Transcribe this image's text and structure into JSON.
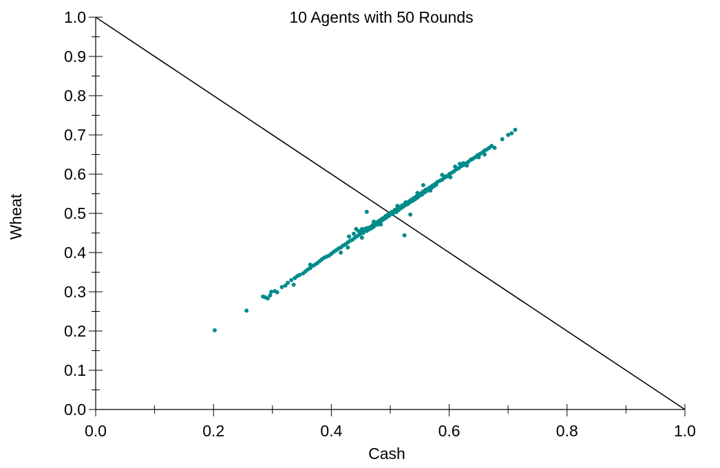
{
  "chart_data": {
    "type": "scatter",
    "title": "10 Agents with 50 Rounds",
    "xlabel": "Cash",
    "ylabel": "Wheat",
    "xlim": [
      0.0,
      1.0
    ],
    "ylim": [
      0.0,
      1.0
    ],
    "xticks": [
      "0.0",
      "0.2",
      "0.4",
      "0.6",
      "0.8",
      "1.0"
    ],
    "yticks": [
      "0.0",
      "0.1",
      "0.2",
      "0.3",
      "0.4",
      "0.5",
      "0.6",
      "0.7",
      "0.8",
      "0.9",
      "1.0"
    ],
    "grid": false,
    "point_color": "#008b8b",
    "line_color": "#000000",
    "reference_line": [
      [
        0.0,
        1.0
      ],
      [
        1.0,
        0.0
      ]
    ],
    "points": [
      [
        0.202,
        0.202
      ],
      [
        0.256,
        0.252
      ],
      [
        0.284,
        0.288
      ],
      [
        0.288,
        0.286
      ],
      [
        0.292,
        0.283
      ],
      [
        0.296,
        0.291
      ],
      [
        0.298,
        0.3
      ],
      [
        0.304,
        0.302
      ],
      [
        0.308,
        0.299
      ],
      [
        0.316,
        0.312
      ],
      [
        0.322,
        0.316
      ],
      [
        0.326,
        0.323
      ],
      [
        0.332,
        0.33
      ],
      [
        0.336,
        0.318
      ],
      [
        0.338,
        0.335
      ],
      [
        0.342,
        0.34
      ],
      [
        0.346,
        0.343
      ],
      [
        0.352,
        0.347
      ],
      [
        0.356,
        0.352
      ],
      [
        0.36,
        0.357
      ],
      [
        0.364,
        0.36
      ],
      [
        0.368,
        0.366
      ],
      [
        0.372,
        0.369
      ],
      [
        0.376,
        0.373
      ],
      [
        0.38,
        0.378
      ],
      [
        0.384,
        0.383
      ],
      [
        0.388,
        0.387
      ],
      [
        0.392,
        0.39
      ],
      [
        0.396,
        0.392
      ],
      [
        0.4,
        0.397
      ],
      [
        0.404,
        0.402
      ],
      [
        0.408,
        0.406
      ],
      [
        0.412,
        0.41
      ],
      [
        0.416,
        0.413
      ],
      [
        0.42,
        0.418
      ],
      [
        0.424,
        0.421
      ],
      [
        0.428,
        0.426
      ],
      [
        0.43,
        0.441
      ],
      [
        0.432,
        0.43
      ],
      [
        0.436,
        0.433
      ],
      [
        0.438,
        0.448
      ],
      [
        0.44,
        0.438
      ],
      [
        0.442,
        0.46
      ],
      [
        0.444,
        0.442
      ],
      [
        0.446,
        0.455
      ],
      [
        0.448,
        0.446
      ],
      [
        0.45,
        0.453
      ],
      [
        0.452,
        0.46
      ],
      [
        0.454,
        0.45
      ],
      [
        0.456,
        0.458
      ],
      [
        0.458,
        0.461
      ],
      [
        0.46,
        0.455
      ],
      [
        0.462,
        0.463
      ],
      [
        0.464,
        0.459
      ],
      [
        0.466,
        0.465
      ],
      [
        0.468,
        0.462
      ],
      [
        0.47,
        0.47
      ],
      [
        0.472,
        0.466
      ],
      [
        0.474,
        0.473
      ],
      [
        0.476,
        0.476
      ],
      [
        0.478,
        0.471
      ],
      [
        0.48,
        0.48
      ],
      [
        0.482,
        0.477
      ],
      [
        0.484,
        0.484
      ],
      [
        0.486,
        0.482
      ],
      [
        0.488,
        0.488
      ],
      [
        0.49,
        0.486
      ],
      [
        0.492,
        0.493
      ],
      [
        0.494,
        0.49
      ],
      [
        0.496,
        0.497
      ],
      [
        0.498,
        0.494
      ],
      [
        0.5,
        0.5
      ],
      [
        0.502,
        0.503
      ],
      [
        0.504,
        0.498
      ],
      [
        0.506,
        0.506
      ],
      [
        0.508,
        0.509
      ],
      [
        0.51,
        0.503
      ],
      [
        0.512,
        0.512
      ],
      [
        0.514,
        0.508
      ],
      [
        0.516,
        0.516
      ],
      [
        0.518,
        0.513
      ],
      [
        0.52,
        0.52
      ],
      [
        0.522,
        0.517
      ],
      [
        0.524,
        0.523
      ],
      [
        0.526,
        0.521
      ],
      [
        0.528,
        0.527
      ],
      [
        0.53,
        0.524
      ],
      [
        0.532,
        0.531
      ],
      [
        0.534,
        0.529
      ],
      [
        0.536,
        0.535
      ],
      [
        0.538,
        0.532
      ],
      [
        0.54,
        0.539
      ],
      [
        0.542,
        0.536
      ],
      [
        0.544,
        0.543
      ],
      [
        0.546,
        0.54
      ],
      [
        0.548,
        0.547
      ],
      [
        0.55,
        0.545
      ],
      [
        0.552,
        0.551
      ],
      [
        0.554,
        0.548
      ],
      [
        0.556,
        0.556
      ],
      [
        0.558,
        0.553
      ],
      [
        0.56,
        0.56
      ],
      [
        0.562,
        0.557
      ],
      [
        0.564,
        0.563
      ],
      [
        0.566,
        0.561
      ],
      [
        0.568,
        0.567
      ],
      [
        0.57,
        0.565
      ],
      [
        0.572,
        0.571
      ],
      [
        0.574,
        0.569
      ],
      [
        0.576,
        0.575
      ],
      [
        0.578,
        0.573
      ],
      [
        0.58,
        0.58
      ],
      [
        0.584,
        0.583
      ],
      [
        0.588,
        0.586
      ],
      [
        0.592,
        0.591
      ],
      [
        0.596,
        0.594
      ],
      [
        0.6,
        0.6
      ],
      [
        0.604,
        0.603
      ],
      [
        0.608,
        0.607
      ],
      [
        0.612,
        0.612
      ],
      [
        0.616,
        0.615
      ],
      [
        0.62,
        0.62
      ],
      [
        0.624,
        0.623
      ],
      [
        0.628,
        0.627
      ],
      [
        0.632,
        0.631
      ],
      [
        0.636,
        0.636
      ],
      [
        0.64,
        0.639
      ],
      [
        0.644,
        0.643
      ],
      [
        0.648,
        0.648
      ],
      [
        0.652,
        0.651
      ],
      [
        0.656,
        0.655
      ],
      [
        0.66,
        0.66
      ],
      [
        0.664,
        0.663
      ],
      [
        0.668,
        0.667
      ],
      [
        0.672,
        0.672
      ],
      [
        0.677,
        0.667
      ],
      [
        0.69,
        0.689
      ],
      [
        0.7,
        0.7
      ],
      [
        0.706,
        0.704
      ],
      [
        0.712,
        0.713
      ],
      [
        0.46,
        0.504
      ],
      [
        0.526,
        0.528
      ],
      [
        0.534,
        0.497
      ],
      [
        0.556,
        0.572
      ],
      [
        0.576,
        0.574
      ],
      [
        0.594,
        0.594
      ],
      [
        0.61,
        0.619
      ],
      [
        0.618,
        0.626
      ],
      [
        0.63,
        0.622
      ],
      [
        0.638,
        0.638
      ],
      [
        0.428,
        0.413
      ],
      [
        0.416,
        0.4
      ],
      [
        0.364,
        0.369
      ],
      [
        0.524,
        0.444
      ],
      [
        0.452,
        0.438
      ],
      [
        0.484,
        0.472
      ],
      [
        0.472,
        0.479
      ],
      [
        0.512,
        0.519
      ],
      [
        0.546,
        0.552
      ],
      [
        0.568,
        0.558
      ],
      [
        0.588,
        0.598
      ],
      [
        0.602,
        0.592
      ],
      [
        0.624,
        0.628
      ],
      [
        0.65,
        0.643
      ],
      [
        0.66,
        0.65
      ]
    ]
  }
}
